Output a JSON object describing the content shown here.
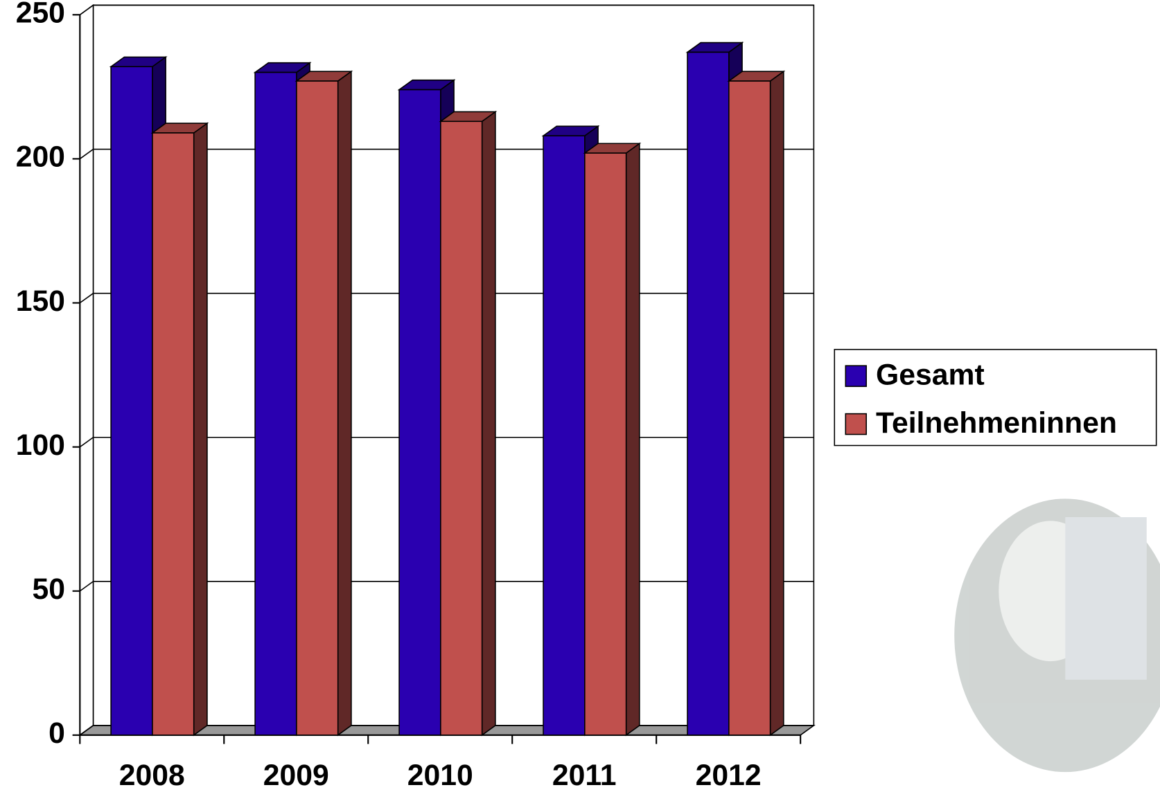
{
  "chart_data": {
    "type": "bar3d",
    "categories": [
      "2008",
      "2009",
      "2010",
      "2011",
      "2012"
    ],
    "series": [
      {
        "name": "Gesamt",
        "color": "#2a00b0",
        "values": [
          232,
          230,
          224,
          208,
          237
        ]
      },
      {
        "name": "Teilnehmeninnen",
        "color": "#c0504d",
        "values": [
          209,
          227,
          213,
          202,
          227
        ]
      }
    ],
    "ylim": [
      0,
      250
    ],
    "yticks": [
      0,
      50,
      100,
      150,
      200,
      250
    ],
    "grid": true,
    "legend": "right"
  }
}
